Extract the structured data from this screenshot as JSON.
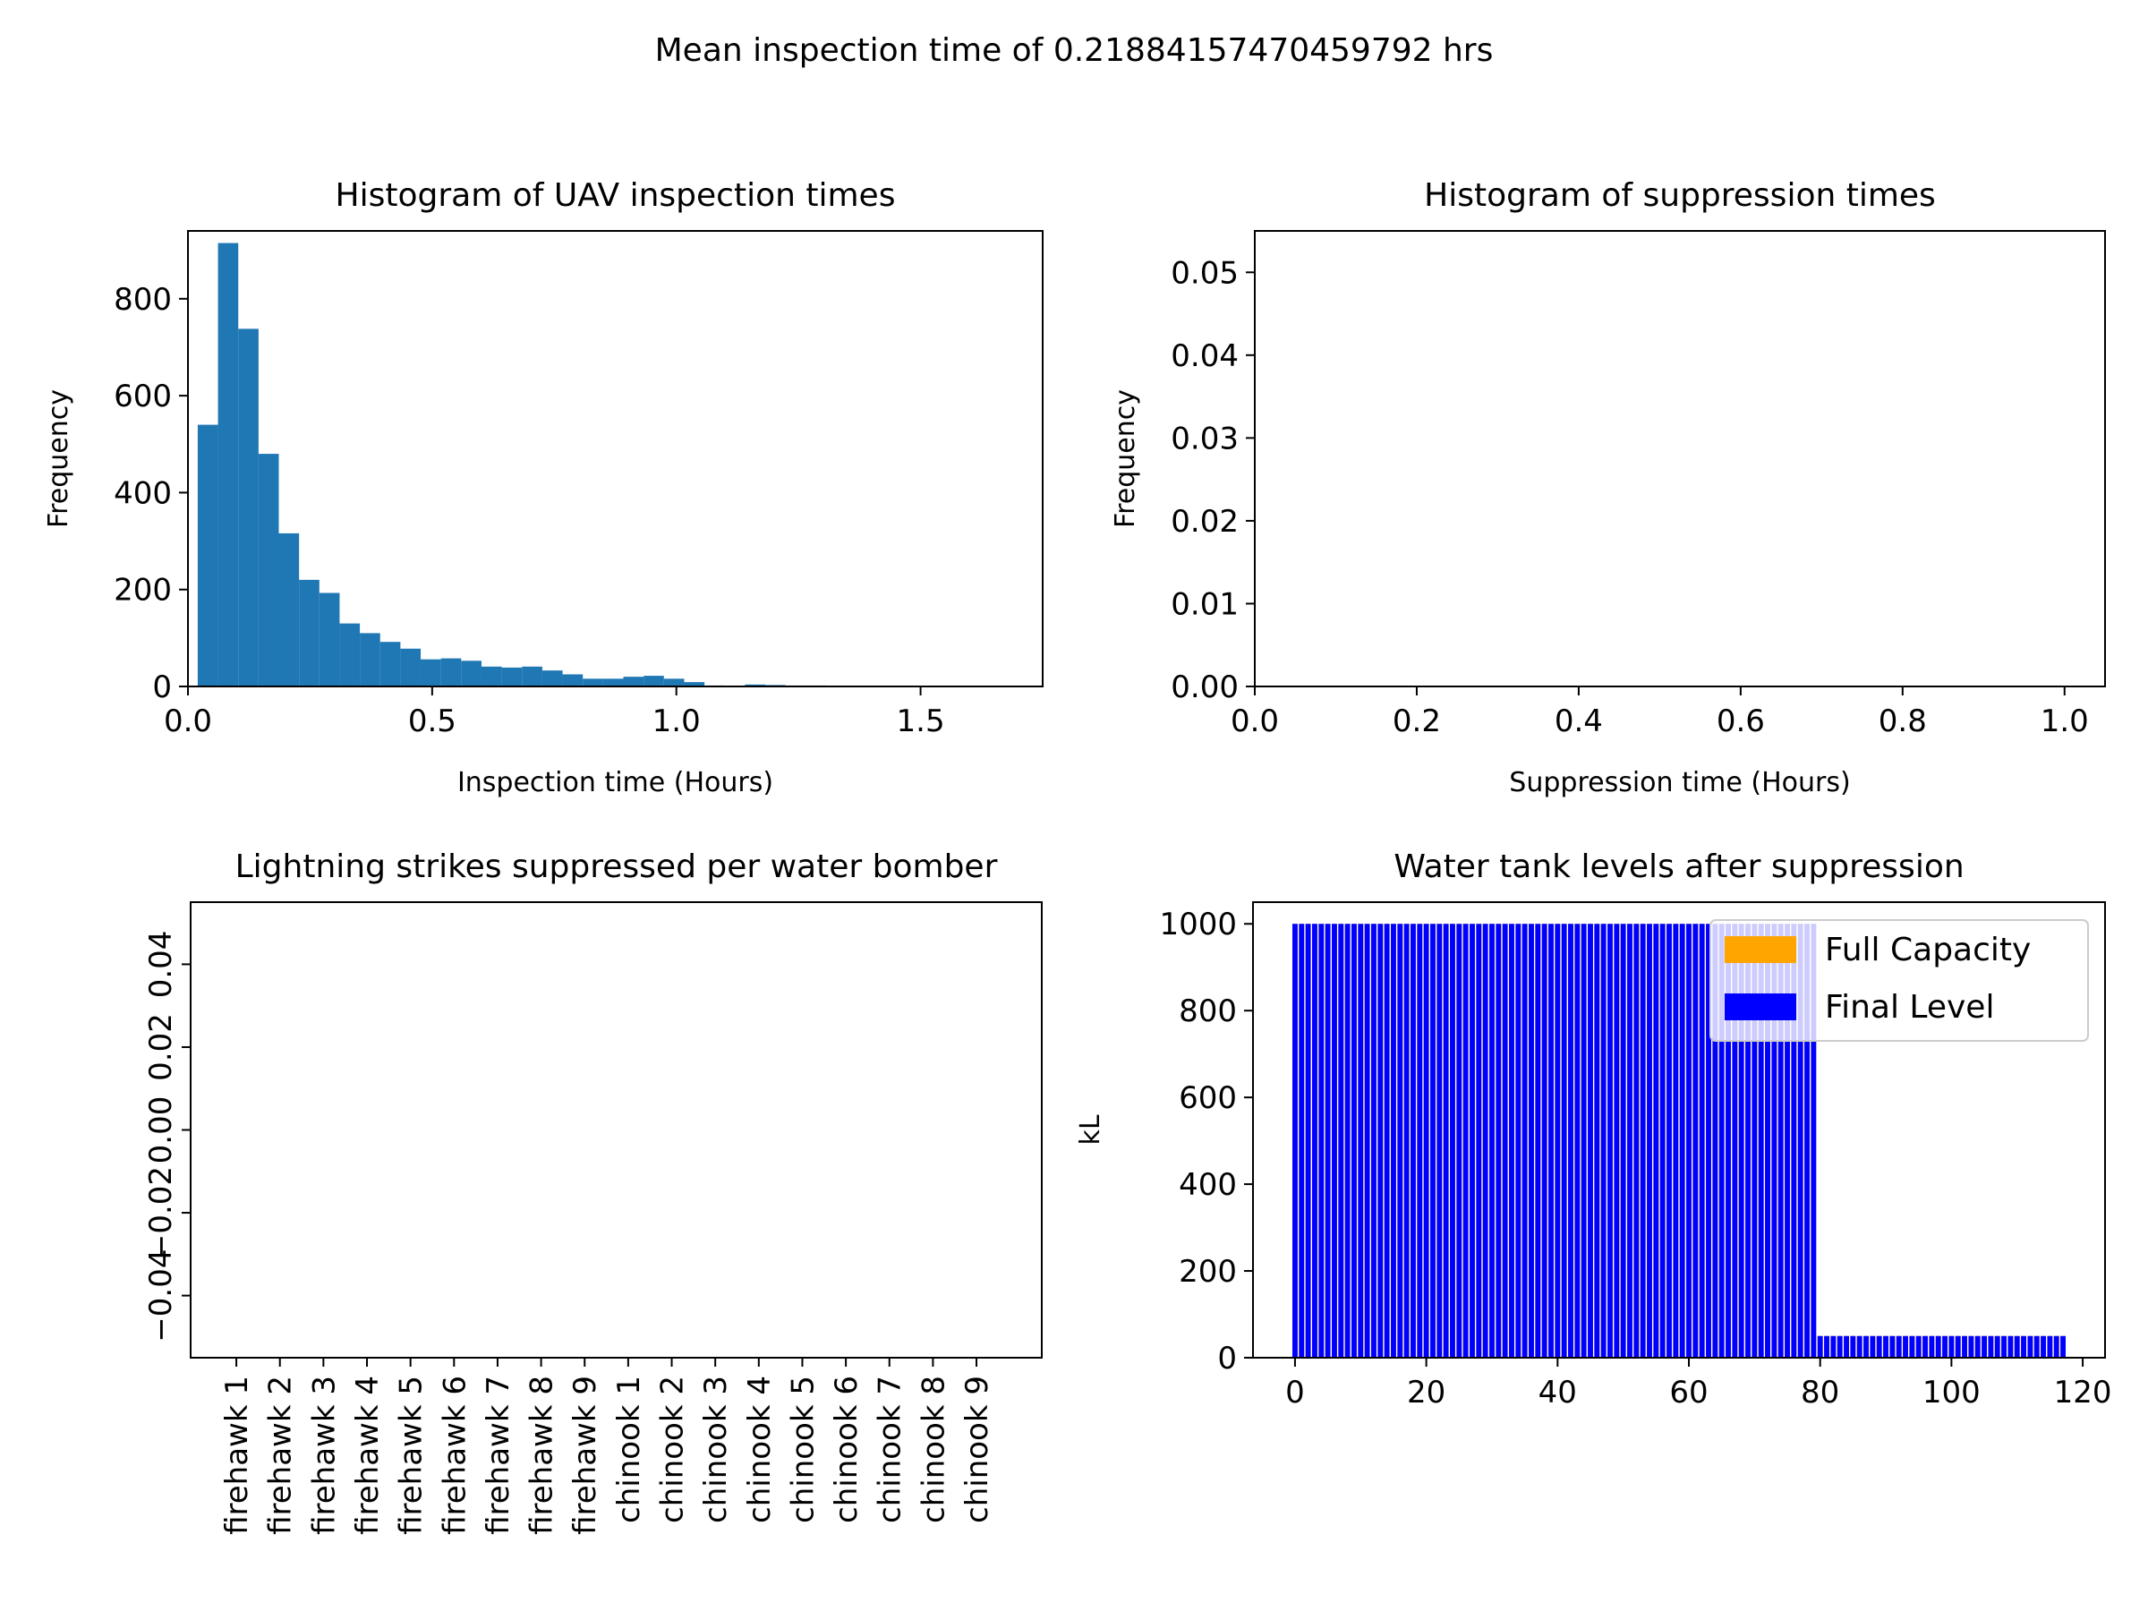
{
  "figure": {
    "suptitle": "Mean inspection time of 0.21884157470459792 hrs"
  },
  "chart_data": [
    {
      "id": "inspection",
      "type": "bar",
      "title": "Histogram of UAV inspection times",
      "xlabel": "Inspection time (Hours)",
      "ylabel": "Frequency",
      "xlim": [
        0.0,
        1.75
      ],
      "ylim": [
        0,
        940
      ],
      "xticks": [
        0.0,
        0.5,
        1.0,
        1.5
      ],
      "xtick_labels": [
        "0.0",
        "0.5",
        "1.0",
        "1.5"
      ],
      "yticks": [
        0,
        200,
        400,
        600,
        800
      ],
      "ytick_labels": [
        "0",
        "200",
        "400",
        "600",
        "800"
      ],
      "bin_start": 0.02,
      "bin_width": 0.0415,
      "values": [
        540,
        915,
        738,
        480,
        316,
        220,
        193,
        130,
        110,
        92,
        78,
        56,
        58,
        53,
        41,
        39,
        41,
        33,
        25,
        16,
        16,
        20,
        22,
        16,
        9,
        2,
        1,
        4,
        3,
        2,
        2,
        1,
        0,
        0,
        1,
        0,
        0,
        0,
        0,
        1
      ],
      "color": "#1f77b4"
    },
    {
      "id": "suppression",
      "type": "bar",
      "title": "Histogram of suppression times",
      "xlabel": "Suppression time (Hours)",
      "ylabel": "Frequency",
      "xlim": [
        0.0,
        1.05
      ],
      "ylim": [
        0.0,
        0.055
      ],
      "xticks": [
        0.0,
        0.2,
        0.4,
        0.6,
        0.8,
        1.0
      ],
      "xtick_labels": [
        "0.0",
        "0.2",
        "0.4",
        "0.6",
        "0.8",
        "1.0"
      ],
      "yticks": [
        0.0,
        0.01,
        0.02,
        0.03,
        0.04,
        0.05
      ],
      "ytick_labels": [
        "0.00",
        "0.01",
        "0.02",
        "0.03",
        "0.04",
        "0.05"
      ],
      "values": []
    },
    {
      "id": "strikes",
      "type": "bar",
      "title": "Lightning strikes suppressed per water bomber",
      "xlabel": "",
      "ylabel": "",
      "ylim": [
        -0.055,
        0.055
      ],
      "yticks": [
        -0.04,
        -0.02,
        0.0,
        0.02,
        0.04
      ],
      "ytick_labels": [
        "−0.04",
        "−0.02",
        "0.00",
        "0.02",
        "0.04"
      ],
      "categories": [
        "firehawk 1",
        "firehawk 2",
        "firehawk 3",
        "firehawk 4",
        "firehawk 5",
        "firehawk 6",
        "firehawk 7",
        "firehawk 8",
        "firehawk 9",
        "chinook 1",
        "chinook 2",
        "chinook 3",
        "chinook 4",
        "chinook 5",
        "chinook 6",
        "chinook 7",
        "chinook 8",
        "chinook 9"
      ],
      "values": [
        0,
        0,
        0,
        0,
        0,
        0,
        0,
        0,
        0,
        0,
        0,
        0,
        0,
        0,
        0,
        0,
        0,
        0
      ]
    },
    {
      "id": "tanks",
      "type": "bar",
      "title": "Water tank levels after suppression",
      "xlabel": "",
      "ylabel": "kL",
      "xlim": [
        -6.4,
        123.4
      ],
      "ylim": [
        0,
        1050
      ],
      "xticks": [
        0,
        20,
        40,
        60,
        80,
        100,
        120
      ],
      "xtick_labels": [
        "0",
        "20",
        "40",
        "60",
        "80",
        "100",
        "120"
      ],
      "yticks": [
        0,
        200,
        400,
        600,
        800,
        1000
      ],
      "ytick_labels": [
        "0",
        "200",
        "400",
        "600",
        "800",
        "1000"
      ],
      "n_bars": 118,
      "series": [
        {
          "name": "Full Capacity",
          "color": "#ffa500",
          "segments": [
            {
              "from": 0,
              "to": 79,
              "value": 1000
            },
            {
              "from": 80,
              "to": 117,
              "value": 50
            }
          ]
        },
        {
          "name": "Final Level",
          "color": "#0000ff",
          "segments": [
            {
              "from": 0,
              "to": 79,
              "value": 1000
            },
            {
              "from": 80,
              "to": 117,
              "value": 50
            }
          ]
        }
      ],
      "legend": {
        "position": "upper right",
        "entries": [
          "Full Capacity",
          "Final Level"
        ]
      }
    }
  ]
}
